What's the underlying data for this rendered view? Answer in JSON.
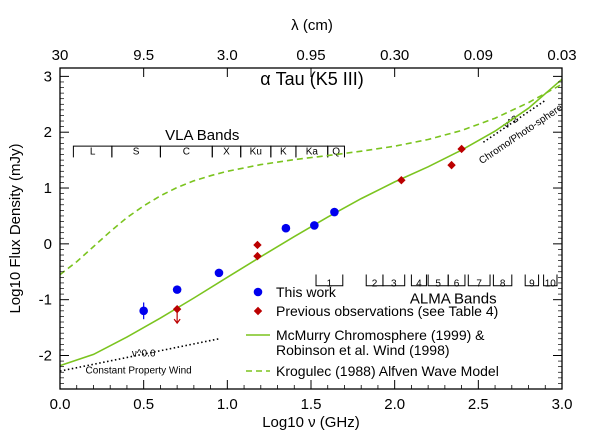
{
  "chart_data": {
    "type": "scatter",
    "title": "α Tau (K5 III)",
    "xlabel": "Log10 ν (GHz)",
    "ylabel": "Log10 Flux Density (mJy)",
    "top_axis_label": "λ (cm)",
    "xlim": [
      0.0,
      3.0
    ],
    "ylim": [
      -2.6,
      3.15
    ],
    "x_ticks": [
      0.0,
      0.5,
      1.0,
      1.5,
      2.0,
      2.5,
      3.0
    ],
    "x_tick_labels": [
      "0.0",
      "0.5",
      "1.0",
      "1.5",
      "2.0",
      "2.5",
      "3.0"
    ],
    "y_ticks": [
      -2,
      -1,
      0,
      1,
      2,
      3
    ],
    "y_tick_labels": [
      "-2",
      "-1",
      "0",
      "1",
      "2",
      "3"
    ],
    "top_ticks": [
      {
        "x": 0.0,
        "label": "30"
      },
      {
        "x": 0.5,
        "label": "9.5"
      },
      {
        "x": 1.0,
        "label": "3.0"
      },
      {
        "x": 1.5,
        "label": "0.95"
      },
      {
        "x": 2.0,
        "label": "0.30"
      },
      {
        "x": 2.5,
        "label": "0.09"
      },
      {
        "x": 3.0,
        "label": "0.03"
      }
    ],
    "series": [
      {
        "name": "This work",
        "marker": "circle",
        "color": "#0000ee",
        "points": [
          {
            "x": 0.5,
            "y": -1.2,
            "err": 0.15
          },
          {
            "x": 0.7,
            "y": -0.82
          },
          {
            "x": 0.95,
            "y": -0.52
          },
          {
            "x": 1.35,
            "y": 0.28
          },
          {
            "x": 1.52,
            "y": 0.33
          },
          {
            "x": 1.64,
            "y": 0.57
          }
        ]
      },
      {
        "name": "Previous observations (see Table 4)",
        "marker": "diamond",
        "color": "#bb0000",
        "points": [
          {
            "x": 0.7,
            "y": -1.17,
            "upper_limit": true
          },
          {
            "x": 1.18,
            "y": -0.02
          },
          {
            "x": 1.18,
            "y": -0.22
          },
          {
            "x": 2.04,
            "y": 1.14
          },
          {
            "x": 2.34,
            "y": 1.41
          },
          {
            "x": 2.4,
            "y": 1.7
          }
        ]
      }
    ],
    "models": [
      {
        "name": "McMurry Chromosphere (1999) & Robinson et al. Wind (1998)",
        "style": "solid",
        "color": "#7bc41f",
        "x": [
          0.0,
          0.2,
          0.4,
          0.6,
          0.8,
          1.0,
          1.2,
          1.4,
          1.6,
          1.8,
          2.0,
          2.2,
          2.4,
          2.6,
          2.8,
          3.0
        ],
        "y": [
          -2.18,
          -1.98,
          -1.67,
          -1.33,
          -0.97,
          -0.6,
          -0.23,
          0.13,
          0.48,
          0.81,
          1.11,
          1.38,
          1.68,
          2.02,
          2.43,
          2.95
        ]
      },
      {
        "name": "Krogulec (1988) Alfven Wave Model",
        "style": "dashed",
        "color": "#7bc41f",
        "x": [
          0.0,
          0.1,
          0.2,
          0.3,
          0.4,
          0.5,
          0.6,
          0.7,
          0.8,
          0.9,
          1.0,
          1.2,
          1.4,
          1.6,
          1.8,
          2.0,
          2.2,
          2.4,
          2.6,
          2.8,
          3.0
        ],
        "y": [
          -0.55,
          -0.32,
          -0.05,
          0.22,
          0.47,
          0.68,
          0.86,
          1.01,
          1.13,
          1.22,
          1.3,
          1.42,
          1.51,
          1.58,
          1.66,
          1.75,
          1.87,
          2.03,
          2.25,
          2.53,
          2.86
        ]
      }
    ],
    "reference_lines": [
      {
        "label": "ν^0.6",
        "sublabel": "Constant Property Wind",
        "x": [
          0.0,
          0.95
        ],
        "y": [
          -2.28,
          -1.7
        ]
      },
      {
        "label": "ν^2",
        "sublabel": "Chromo/Photo-sphere",
        "x": [
          2.53,
          2.9
        ],
        "y": [
          1.82,
          2.57
        ]
      }
    ],
    "vla_bands": {
      "title": "VLA Bands",
      "bands": [
        {
          "label": "L",
          "x0": 0.08,
          "x1": 0.31
        },
        {
          "label": "S",
          "x0": 0.31,
          "x1": 0.6
        },
        {
          "label": "C",
          "x0": 0.6,
          "x1": 0.91
        },
        {
          "label": "X",
          "x0": 0.91,
          "x1": 1.08
        },
        {
          "label": "Ku",
          "x0": 1.08,
          "x1": 1.26
        },
        {
          "label": "K",
          "x0": 1.26,
          "x1": 1.41
        },
        {
          "label": "Ka",
          "x0": 1.41,
          "x1": 1.6
        },
        {
          "label": "Q",
          "x0": 1.6,
          "x1": 1.7
        }
      ]
    },
    "alma_bands": {
      "title": "ALMA Bands",
      "bands": [
        {
          "label": "1",
          "x0": 1.53,
          "x1": 1.69
        },
        {
          "label": "2",
          "x0": 1.83,
          "x1": 1.93
        },
        {
          "label": "3",
          "x0": 1.93,
          "x1": 2.06
        },
        {
          "label": "4",
          "x0": 2.1,
          "x1": 2.19
        },
        {
          "label": "5",
          "x0": 2.2,
          "x1": 2.32
        },
        {
          "label": "6",
          "x0": 2.32,
          "x1": 2.42
        },
        {
          "label": "7",
          "x0": 2.44,
          "x1": 2.57
        },
        {
          "label": "8",
          "x0": 2.59,
          "x1": 2.7
        },
        {
          "label": "9",
          "x0": 2.78,
          "x1": 2.86
        },
        {
          "label": "10",
          "x0": 2.89,
          "x1": 2.97
        }
      ]
    },
    "legend": {
      "placement": "bottom-right"
    }
  }
}
